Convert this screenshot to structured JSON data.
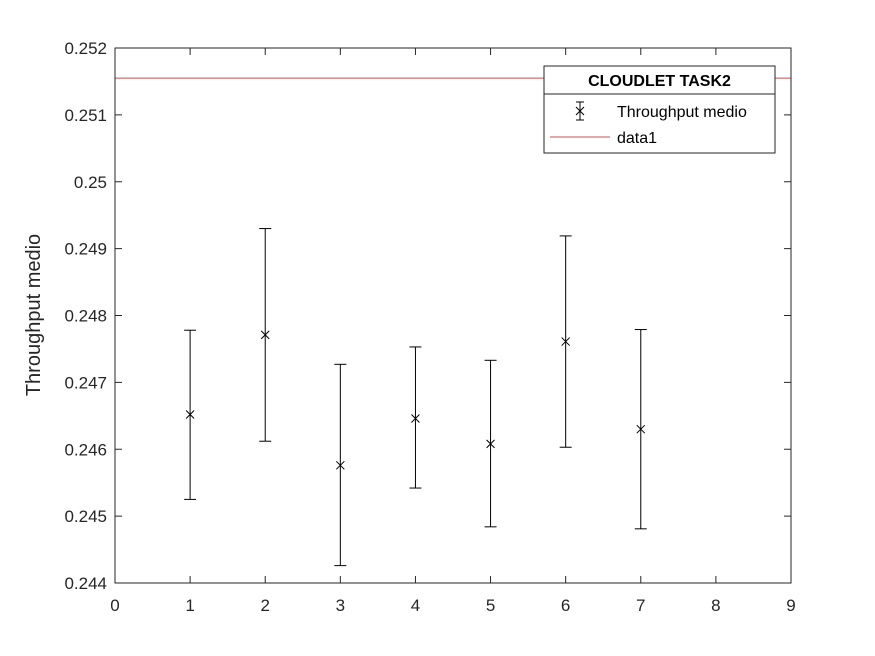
{
  "chart_data": {
    "type": "scatter",
    "title": "",
    "xlabel": "",
    "ylabel": "Throughput medio",
    "xlim": [
      0,
      9
    ],
    "ylim": [
      0.244,
      0.252
    ],
    "x_ticks": [
      "0",
      "1",
      "2",
      "3",
      "4",
      "5",
      "6",
      "7",
      "8",
      "9"
    ],
    "y_ticks": [
      "0.244",
      "0.245",
      "0.246",
      "0.247",
      "0.248",
      "0.249",
      "0.25",
      "0.251",
      "0.252"
    ],
    "grid": false,
    "legend": {
      "title": "CLOUDLET TASK2",
      "position": "top-right",
      "entries": [
        "Throughput medio",
        "data1"
      ]
    },
    "series": [
      {
        "name": "Throughput medio",
        "kind": "errorbar",
        "marker": "x",
        "color": "#000000",
        "x": [
          1,
          2,
          3,
          4,
          5,
          6,
          7
        ],
        "y": [
          0.24652,
          0.24771,
          0.24576,
          0.24646,
          0.24608,
          0.24761,
          0.2463
        ],
        "lower": [
          0.24525,
          0.24612,
          0.24426,
          0.24542,
          0.24484,
          0.24603,
          0.24481
        ],
        "upper": [
          0.24778,
          0.2493,
          0.24727,
          0.24753,
          0.24733,
          0.24919,
          0.24779
        ]
      },
      {
        "name": "data1",
        "kind": "hline",
        "color": "#c0504d",
        "y": 0.25155
      }
    ]
  }
}
